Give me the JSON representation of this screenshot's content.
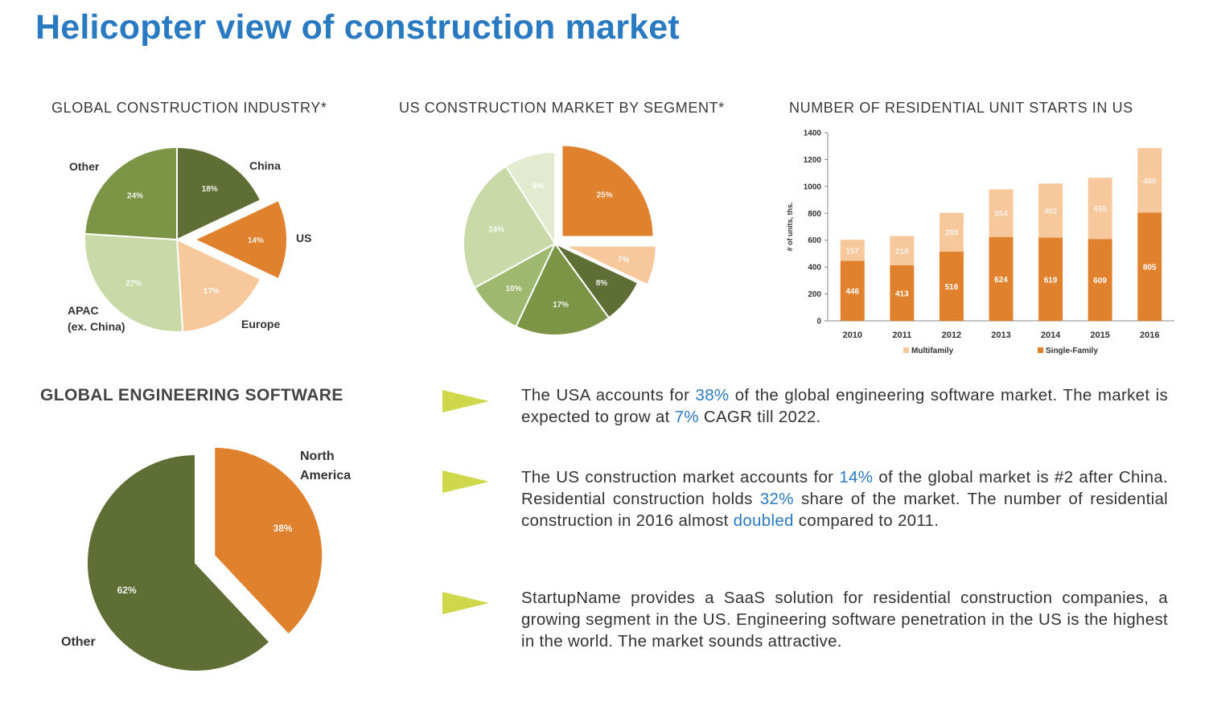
{
  "page": {
    "title": "Helicopter view of construction market",
    "colors": {
      "title": "#2a7ac2",
      "dark_green": "#5e6e34",
      "olive": "#7c9446",
      "light_green": "#c9d9a8",
      "pale_green": "#e2ead0",
      "orange": "#e0812e",
      "peach": "#f6c89c",
      "bullet_arrow": "#cfd84a"
    }
  },
  "chart_data": [
    {
      "type": "pie",
      "title": "GLOBAL CONSTRUCTION INDUSTRY*",
      "slices": [
        {
          "name": "China",
          "value": 18,
          "label": "18%",
          "color": "#5e6e34",
          "exploded": false
        },
        {
          "name": "US",
          "value": 14,
          "label": "14%",
          "color": "#e0812e",
          "exploded": true
        },
        {
          "name": "Europe",
          "value": 17,
          "label": "17%",
          "color": "#f6c89c",
          "exploded": false
        },
        {
          "name": "APAC (ex. China)",
          "value": 27,
          "label": "27%",
          "color": "#c9d9a8",
          "exploded": false
        },
        {
          "name": "Other",
          "value": 24,
          "label": "24%",
          "color": "#7c9446",
          "exploded": false
        }
      ],
      "category_labels": {
        "china": "China",
        "us": "US",
        "europe": "Europe",
        "apac_line1": "APAC",
        "apac_line2": "(ex. China)",
        "other": "Other"
      }
    },
    {
      "type": "pie",
      "title": "US CONSTRUCTION MARKET BY SEGMENT*",
      "slices": [
        {
          "value": 25,
          "label": "25%",
          "color": "#e0812e",
          "exploded": true
        },
        {
          "value": 7,
          "label": "7%",
          "color": "#f6c89c",
          "exploded": true
        },
        {
          "value": 8,
          "label": "8%",
          "color": "#5e6e34",
          "exploded": false
        },
        {
          "value": 17,
          "label": "17%",
          "color": "#7c9446",
          "exploded": false
        },
        {
          "value": 10,
          "label": "10%",
          "color": "#9fb870",
          "exploded": false
        },
        {
          "value": 24,
          "label": "24%",
          "color": "#c9d9a8",
          "exploded": false
        },
        {
          "value": 9,
          "label": "9%",
          "color": "#e2ead0",
          "exploded": false
        }
      ]
    },
    {
      "type": "bar",
      "stacked": true,
      "title": "NUMBER OF RESIDENTIAL UNIT STARTS IN US",
      "ylabel": "# of units, ths.",
      "categories": [
        "2010",
        "2011",
        "2012",
        "2013",
        "2014",
        "2015",
        "2016"
      ],
      "ylim": [
        0,
        1400
      ],
      "yticks": [
        "0",
        "200",
        "400",
        "600",
        "800",
        "1000",
        "1200",
        "1400"
      ],
      "series": [
        {
          "name": "Single-Family",
          "color": "#e0812e",
          "values": [
            446,
            413,
            516,
            624,
            619,
            609,
            805
          ]
        },
        {
          "name": "Multifamily",
          "color": "#f6c89c",
          "values": [
            157,
            218,
            288,
            354,
            402,
            455,
            480
          ]
        }
      ],
      "legend": "bottom"
    },
    {
      "type": "pie",
      "title": "GLOBAL ENGINEERING SOFTWARE",
      "slices": [
        {
          "name": "North America",
          "value": 38,
          "label": "38%",
          "color": "#e0812e",
          "exploded": true
        },
        {
          "name": "Other",
          "value": 62,
          "label": "62%",
          "color": "#5e6e34",
          "exploded": false
        }
      ],
      "category_labels": {
        "na_line1": "North",
        "na_line2": "America",
        "other": "Other"
      }
    }
  ],
  "bullets": [
    {
      "p1": "The USA accounts for ",
      "h1": "38%",
      "p2": " of the global engineering software market. The market is expected to grow at ",
      "h2": "7%",
      "p3": " CAGR till 2022."
    },
    {
      "p1": "The US construction market accounts for ",
      "h1": "14%",
      "p2": " of the global market is #2 after China. Residential construction holds ",
      "h2": "32%",
      "p3": " share of the market. The number of residential construction in 2016 almost ",
      "h3": "doubled",
      "p4": " compared to 2011."
    },
    {
      "p1": "StartupName provides a SaaS solution for residential construction companies, a growing segment in the US. Engineering software penetration in the US is the highest in the world.  The market sounds attractive."
    }
  ]
}
